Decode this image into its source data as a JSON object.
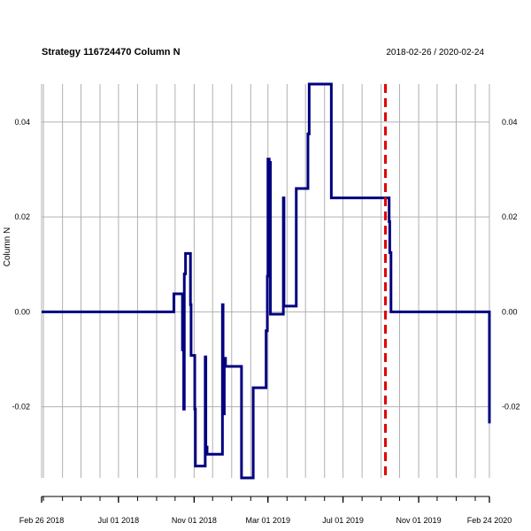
{
  "chart_data": {
    "type": "line",
    "title": "Strategy 116724470 Column N",
    "date_range": "2018-02-26 / 2020-02-24",
    "ylabel": "Column N",
    "xlabel": "",
    "grid": true,
    "x_range": [
      "2018-02-26",
      "2020-02-24"
    ],
    "ylim": [
      -0.035,
      0.048
    ],
    "y_ticks": [
      {
        "value": 0.04,
        "label": "0.04"
      },
      {
        "value": 0.02,
        "label": "0.02"
      },
      {
        "value": 0.0,
        "label": "0.00"
      },
      {
        "value": -0.02,
        "label": "-0.02"
      }
    ],
    "x_ticks": [
      {
        "date": "2018-02-26",
        "label": "Feb 26 2018"
      },
      {
        "date": "2018-07-01",
        "label": "Jul 01 2018"
      },
      {
        "date": "2018-11-01",
        "label": "Nov 01 2018"
      },
      {
        "date": "2019-03-01",
        "label": "Mar 01 2019"
      },
      {
        "date": "2019-07-01",
        "label": "Jul 01 2019"
      },
      {
        "date": "2019-11-01",
        "label": "Nov 01 2019"
      },
      {
        "date": "2020-02-24",
        "label": "Feb 24 2020"
      }
    ],
    "series": [
      {
        "color": "#000080",
        "points": [
          [
            "2018-02-26",
            0.0
          ],
          [
            "2018-09-29",
            0.0
          ],
          [
            "2018-09-29",
            0.0038
          ],
          [
            "2018-10-13",
            0.0038
          ],
          [
            "2018-10-13",
            -0.008
          ],
          [
            "2018-10-15",
            -0.008
          ],
          [
            "2018-10-15",
            -0.0205
          ],
          [
            "2018-10-16",
            -0.0205
          ],
          [
            "2018-10-16",
            0.008
          ],
          [
            "2018-10-18",
            0.008
          ],
          [
            "2018-10-18",
            0.0123
          ],
          [
            "2018-10-26",
            0.0123
          ],
          [
            "2018-10-26",
            0.0015
          ],
          [
            "2018-10-27",
            0.0015
          ],
          [
            "2018-10-27",
            -0.0092
          ],
          [
            "2018-11-02",
            -0.0092
          ],
          [
            "2018-11-02",
            -0.0205
          ],
          [
            "2018-11-03",
            -0.0205
          ],
          [
            "2018-11-03",
            -0.0325
          ],
          [
            "2018-11-19",
            -0.0325
          ],
          [
            "2018-11-19",
            -0.0095
          ],
          [
            "2018-11-20",
            -0.0095
          ],
          [
            "2018-11-20",
            -0.0285
          ],
          [
            "2018-11-22",
            -0.0285
          ],
          [
            "2018-11-22",
            -0.03
          ],
          [
            "2018-12-17",
            -0.03
          ],
          [
            "2018-12-17",
            0.0015
          ],
          [
            "2018-12-18",
            0.0015
          ],
          [
            "2018-12-18",
            -0.0215
          ],
          [
            "2018-12-20",
            -0.0215
          ],
          [
            "2018-12-20",
            -0.0098
          ],
          [
            "2018-12-22",
            -0.0098
          ],
          [
            "2018-12-22",
            -0.0115
          ],
          [
            "2019-01-17",
            -0.0115
          ],
          [
            "2019-01-17",
            -0.035
          ],
          [
            "2019-02-05",
            -0.035
          ],
          [
            "2019-02-05",
            -0.016
          ],
          [
            "2019-02-26",
            -0.016
          ],
          [
            "2019-02-26",
            -0.004
          ],
          [
            "2019-02-28",
            -0.004
          ],
          [
            "2019-02-28",
            0.0075
          ],
          [
            "2019-03-01",
            0.0075
          ],
          [
            "2019-03-01",
            0.0322
          ],
          [
            "2019-03-03",
            0.0322
          ],
          [
            "2019-03-03",
            0.01
          ],
          [
            "2019-03-04",
            0.01
          ],
          [
            "2019-03-04",
            0.0315
          ],
          [
            "2019-03-05",
            0.0315
          ],
          [
            "2019-03-05",
            -0.0005
          ],
          [
            "2019-03-26",
            -0.0005
          ],
          [
            "2019-03-26",
            0.024
          ],
          [
            "2019-03-27",
            0.024
          ],
          [
            "2019-03-27",
            0.0012
          ],
          [
            "2019-04-16",
            0.0012
          ],
          [
            "2019-04-16",
            0.026
          ],
          [
            "2019-05-05",
            0.026
          ],
          [
            "2019-05-05",
            0.0375
          ],
          [
            "2019-05-07",
            0.0375
          ],
          [
            "2019-05-07",
            0.048
          ],
          [
            "2019-06-12",
            0.048
          ],
          [
            "2019-06-12",
            0.024
          ],
          [
            "2019-09-14",
            0.024
          ],
          [
            "2019-09-14",
            0.019
          ],
          [
            "2019-09-15",
            0.019
          ],
          [
            "2019-09-15",
            0.0125
          ],
          [
            "2019-09-17",
            0.0125
          ],
          [
            "2019-09-17",
            0.0
          ],
          [
            "2020-02-24",
            0.0
          ],
          [
            "2020-02-24",
            -0.0235
          ]
        ]
      }
    ],
    "vline": {
      "date": "2019-09-08",
      "color": "#dd0000",
      "style": "dashed"
    }
  }
}
